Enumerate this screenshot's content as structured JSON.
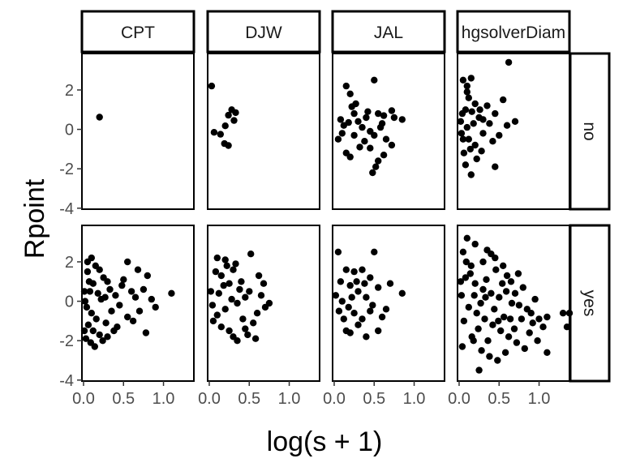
{
  "chart_data": {
    "type": "scatter",
    "xlabel": "log(s + 1)",
    "ylabel": "Rpoint",
    "columns": [
      "CPT",
      "DJW",
      "JAL",
      "hgsolverDiam"
    ],
    "rows": [
      "no",
      "yes"
    ],
    "x_ticks": [
      "0.0",
      "0.5",
      "1.0"
    ],
    "y_ticks": [
      "-4",
      "-2",
      "0",
      "2"
    ],
    "xlim": [
      -0.02,
      1.38
    ],
    "ylim": [
      -4.05,
      3.85
    ],
    "grid": false,
    "marker_color": "#000000",
    "panels": [
      {
        "row": "no",
        "column": "CPT",
        "points": [
          [
            0.2,
            0.62
          ]
        ]
      },
      {
        "row": "no",
        "column": "DJW",
        "points": [
          [
            0.03,
            2.2
          ],
          [
            0.28,
            1.0
          ],
          [
            0.33,
            0.85
          ],
          [
            0.24,
            0.72
          ],
          [
            0.31,
            0.45
          ],
          [
            0.2,
            0.18
          ],
          [
            0.06,
            -0.15
          ],
          [
            0.14,
            -0.25
          ],
          [
            0.19,
            -0.72
          ],
          [
            0.24,
            -0.82
          ]
        ]
      },
      {
        "row": "no",
        "column": "JAL",
        "points": [
          [
            0.15,
            2.2
          ],
          [
            0.2,
            1.8
          ],
          [
            0.27,
            1.3
          ],
          [
            0.22,
            1.15
          ],
          [
            0.5,
            2.5
          ],
          [
            0.42,
            0.9
          ],
          [
            0.55,
            0.8
          ],
          [
            0.62,
            0.7
          ],
          [
            0.72,
            0.95
          ],
          [
            0.75,
            0.6
          ],
          [
            0.85,
            0.5
          ],
          [
            0.08,
            0.5
          ],
          [
            0.12,
            0.2
          ],
          [
            0.18,
            0.35
          ],
          [
            0.3,
            0.4
          ],
          [
            0.35,
            0.1
          ],
          [
            0.45,
            -0.1
          ],
          [
            0.5,
            -0.3
          ],
          [
            0.58,
            0.1
          ],
          [
            0.65,
            -0.5
          ],
          [
            0.72,
            -0.8
          ],
          [
            0.05,
            -0.5
          ],
          [
            0.15,
            -1.2
          ],
          [
            0.25,
            -0.3
          ],
          [
            0.32,
            -0.9
          ],
          [
            0.38,
            -0.6
          ],
          [
            0.45,
            -0.95
          ],
          [
            0.55,
            -1.6
          ],
          [
            0.62,
            -1.3
          ],
          [
            0.48,
            -2.2
          ],
          [
            0.52,
            -1.9
          ],
          [
            0.2,
            -1.4
          ],
          [
            0.4,
            0.6
          ],
          [
            0.6,
            0.3
          ],
          [
            0.25,
            0.8
          ],
          [
            0.1,
            -0.2
          ]
        ]
      },
      {
        "row": "no",
        "column": "hgsolverDiam",
        "points": [
          [
            0.05,
            2.5
          ],
          [
            0.15,
            2.6
          ],
          [
            0.62,
            3.4
          ],
          [
            0.12,
            1.6
          ],
          [
            0.2,
            1.3
          ],
          [
            0.08,
            1.0
          ],
          [
            0.35,
            1.2
          ],
          [
            0.55,
            1.5
          ],
          [
            0.45,
            0.8
          ],
          [
            0.6,
            0.2
          ],
          [
            0.7,
            0.4
          ],
          [
            0.5,
            -0.3
          ],
          [
            0.3,
            -0.2
          ],
          [
            0.25,
            0.6
          ],
          [
            0.18,
            0.3
          ],
          [
            0.1,
            0.1
          ],
          [
            0.05,
            -0.5
          ],
          [
            0.14,
            -1.0
          ],
          [
            0.22,
            -1.5
          ],
          [
            0.08,
            -1.8
          ],
          [
            0.15,
            -2.3
          ],
          [
            0.45,
            -1.9
          ],
          [
            0.04,
            0.8
          ],
          [
            0.1,
            1.9
          ],
          [
            0.02,
            0.4
          ],
          [
            0.03,
            -0.2
          ],
          [
            0.06,
            -1.2
          ],
          [
            0.12,
            -0.5
          ],
          [
            0.16,
            0.9
          ],
          [
            0.2,
            -0.8
          ],
          [
            0.26,
            1.0
          ],
          [
            0.3,
            0.5
          ],
          [
            0.38,
            0.3
          ],
          [
            0.42,
            -0.6
          ],
          [
            0.28,
            -1.1
          ],
          [
            0.1,
            2.2
          ]
        ]
      },
      {
        "row": "yes",
        "column": "CPT",
        "points": [
          [
            0.1,
            2.2
          ],
          [
            0.15,
            1.8
          ],
          [
            0.05,
            1.5
          ],
          [
            0.2,
            1.6
          ],
          [
            0.25,
            1.2
          ],
          [
            0.3,
            1.0
          ],
          [
            0.12,
            0.9
          ],
          [
            0.08,
            0.5
          ],
          [
            0.18,
            0.4
          ],
          [
            0.22,
            0.1
          ],
          [
            0.02,
            0.0
          ],
          [
            0.04,
            -0.3
          ],
          [
            0.1,
            -0.6
          ],
          [
            0.16,
            -0.9
          ],
          [
            0.06,
            -1.2
          ],
          [
            0.12,
            -1.5
          ],
          [
            0.2,
            -1.7
          ],
          [
            0.03,
            -1.9
          ],
          [
            0.09,
            -2.1
          ],
          [
            0.14,
            -2.3
          ],
          [
            0.28,
            -1.1
          ],
          [
            0.35,
            -0.5
          ],
          [
            0.4,
            0.3
          ],
          [
            0.45,
            -0.2
          ],
          [
            0.55,
            2.0
          ],
          [
            0.5,
            1.1
          ],
          [
            0.6,
            0.5
          ],
          [
            0.65,
            0.2
          ],
          [
            0.7,
            -0.5
          ],
          [
            0.75,
            0.6
          ],
          [
            0.8,
            1.3
          ],
          [
            0.85,
            0.1
          ],
          [
            0.62,
            -1.0
          ],
          [
            0.55,
            -0.8
          ],
          [
            1.1,
            0.4
          ],
          [
            0.9,
            -0.3
          ],
          [
            0.3,
            -1.8
          ],
          [
            0.38,
            -1.5
          ],
          [
            0.24,
            -2.0
          ],
          [
            0.48,
            0.8
          ],
          [
            0.05,
            2.0
          ],
          [
            0.07,
            1.0
          ],
          [
            0.01,
            0.5
          ],
          [
            0.01,
            -1.5
          ],
          [
            0.33,
            0.6
          ],
          [
            0.42,
            -1.3
          ],
          [
            0.27,
            0.2
          ],
          [
            0.68,
            1.6
          ],
          [
            0.78,
            -1.6
          ]
        ]
      },
      {
        "row": "yes",
        "column": "DJW",
        "points": [
          [
            0.1,
            2.2
          ],
          [
            0.2,
            2.1
          ],
          [
            0.52,
            2.4
          ],
          [
            0.08,
            1.5
          ],
          [
            0.15,
            1.3
          ],
          [
            0.3,
            1.6
          ],
          [
            0.25,
            0.9
          ],
          [
            0.4,
            1.0
          ],
          [
            0.5,
            0.5
          ],
          [
            0.45,
            0.2
          ],
          [
            0.35,
            -0.1
          ],
          [
            0.2,
            -0.4
          ],
          [
            0.1,
            -0.7
          ],
          [
            0.05,
            -1.0
          ],
          [
            0.15,
            -1.3
          ],
          [
            0.25,
            -1.5
          ],
          [
            0.3,
            -1.8
          ],
          [
            0.35,
            -2.0
          ],
          [
            0.45,
            -1.4
          ],
          [
            0.55,
            -1.1
          ],
          [
            0.6,
            -0.6
          ],
          [
            0.65,
            0.3
          ],
          [
            0.7,
            -0.3
          ],
          [
            0.62,
            1.3
          ],
          [
            0.75,
            -0.1
          ],
          [
            0.02,
            0.5
          ],
          [
            0.04,
            -0.2
          ],
          [
            0.12,
            0.4
          ],
          [
            0.18,
            0.8
          ],
          [
            0.28,
            0.1
          ],
          [
            0.38,
            0.6
          ],
          [
            0.42,
            -0.9
          ],
          [
            0.48,
            -1.7
          ],
          [
            0.22,
            1.8
          ],
          [
            0.33,
            1.9
          ],
          [
            0.58,
            -1.9
          ],
          [
            0.68,
            0.9
          ]
        ]
      },
      {
        "row": "yes",
        "column": "JAL",
        "points": [
          [
            0.05,
            2.5
          ],
          [
            0.5,
            2.5
          ],
          [
            0.15,
            1.6
          ],
          [
            0.25,
            1.5
          ],
          [
            0.35,
            1.6
          ],
          [
            0.45,
            1.2
          ],
          [
            0.08,
            1.0
          ],
          [
            0.2,
            0.8
          ],
          [
            0.3,
            0.5
          ],
          [
            0.4,
            0.2
          ],
          [
            0.55,
            0.7
          ],
          [
            0.85,
            0.4
          ],
          [
            0.1,
            0.0
          ],
          [
            0.18,
            -0.3
          ],
          [
            0.25,
            -0.6
          ],
          [
            0.35,
            -0.9
          ],
          [
            0.45,
            -0.5
          ],
          [
            0.55,
            -1.5
          ],
          [
            0.6,
            -0.8
          ],
          [
            0.3,
            -1.2
          ],
          [
            0.2,
            -1.6
          ],
          [
            0.12,
            -0.9
          ],
          [
            0.4,
            -1.8
          ],
          [
            0.65,
            -0.4
          ],
          [
            0.7,
            0.9
          ],
          [
            0.02,
            0.3
          ],
          [
            0.06,
            -0.5
          ],
          [
            0.22,
            0.2
          ],
          [
            0.28,
            1.0
          ],
          [
            0.48,
            -0.2
          ],
          [
            0.38,
            0.9
          ],
          [
            0.15,
            -1.5
          ]
        ]
      },
      {
        "row": "yes",
        "column": "hgsolverDiam",
        "points": [
          [
            0.1,
            3.2
          ],
          [
            0.2,
            2.9
          ],
          [
            0.35,
            2.6
          ],
          [
            0.05,
            2.5
          ],
          [
            0.45,
            2.2
          ],
          [
            0.3,
            2.0
          ],
          [
            0.15,
            1.8
          ],
          [
            0.55,
            1.8
          ],
          [
            0.6,
            1.3
          ],
          [
            0.65,
            1.0
          ],
          [
            0.08,
            1.2
          ],
          [
            0.2,
            0.9
          ],
          [
            0.3,
            0.6
          ],
          [
            0.4,
            0.4
          ],
          [
            0.5,
            0.2
          ],
          [
            0.7,
            0.4
          ],
          [
            0.75,
            -0.2
          ],
          [
            0.8,
            0.7
          ],
          [
            0.85,
            -0.4
          ],
          [
            0.9,
            -0.6
          ],
          [
            0.95,
            0.1
          ],
          [
            1.0,
            -0.9
          ],
          [
            1.05,
            -1.3
          ],
          [
            1.1,
            -0.8
          ],
          [
            0.12,
            -0.3
          ],
          [
            0.22,
            -0.6
          ],
          [
            0.32,
            -0.9
          ],
          [
            0.42,
            -1.2
          ],
          [
            0.52,
            -1.5
          ],
          [
            0.62,
            -1.8
          ],
          [
            0.72,
            -2.1
          ],
          [
            0.82,
            -2.4
          ],
          [
            0.18,
            -2.0
          ],
          [
            0.28,
            -2.5
          ],
          [
            0.38,
            -2.8
          ],
          [
            0.48,
            -3.0
          ],
          [
            0.58,
            -2.6
          ],
          [
            0.25,
            -3.5
          ],
          [
            0.98,
            -2.0
          ],
          [
            1.1,
            -2.6
          ],
          [
            1.3,
            -0.6
          ],
          [
            1.38,
            -0.6
          ],
          [
            1.35,
            -1.3
          ],
          [
            0.03,
            0.3
          ],
          [
            0.06,
            -1.0
          ],
          [
            0.14,
            1.4
          ],
          [
            0.24,
            -1.4
          ],
          [
            0.34,
            1.1
          ],
          [
            0.44,
            -0.4
          ],
          [
            0.54,
            0.9
          ],
          [
            0.64,
            -0.9
          ],
          [
            0.74,
            1.4
          ],
          [
            0.88,
            -1.6
          ],
          [
            0.16,
            -1.8
          ],
          [
            0.36,
            -2.0
          ],
          [
            0.46,
            1.6
          ],
          [
            0.56,
            -0.8
          ],
          [
            0.66,
            -0.1
          ],
          [
            0.09,
            2.0
          ],
          [
            0.4,
            2.4
          ],
          [
            0.02,
            1.0
          ],
          [
            0.04,
            -2.3
          ],
          [
            0.19,
            0.3
          ],
          [
            0.27,
            -0.1
          ],
          [
            0.33,
            0.2
          ],
          [
            0.49,
            -1.0
          ],
          [
            0.59,
            0.5
          ],
          [
            0.69,
            -1.4
          ],
          [
            0.78,
            -0.9
          ],
          [
            0.92,
            -1.1
          ]
        ]
      }
    ]
  }
}
